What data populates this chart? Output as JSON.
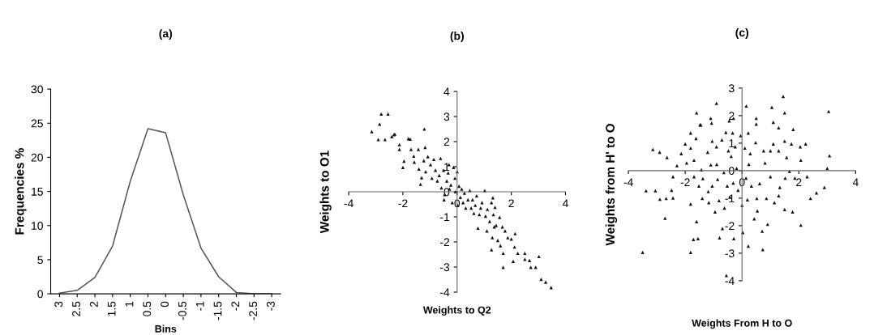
{
  "chart_data": [
    {
      "type": "line",
      "title": "(a)",
      "xlabel": "Bins",
      "ylabel": "Frequencies %",
      "categories": [
        "3",
        "2.5",
        "2",
        "1.5",
        "1",
        "0.5",
        "0",
        "-0.5",
        "-1",
        "-1.5",
        "-2",
        "-2.5",
        "-3"
      ],
      "values": [
        0.1,
        0.5,
        2.4,
        7,
        16.5,
        24.2,
        23.6,
        14.5,
        6.7,
        2.5,
        0.2,
        0,
        0
      ],
      "color": "#555555",
      "ylim": [
        0,
        30
      ],
      "yticks": [
        0,
        5,
        10,
        15,
        20,
        25,
        30
      ]
    },
    {
      "type": "scatter",
      "title": "(b)",
      "xlabel": "Weights to Q2",
      "ylabel": "Weights to O1",
      "color": "#111111",
      "marker": "triangle",
      "x": [
        -3.15,
        -2.86,
        -2.8,
        -2.55,
        -2.91,
        -2.66,
        -2.41,
        -2.33,
        -2.3,
        -2.13,
        -2.13,
        -2.0,
        -1.96,
        -1.8,
        -1.73,
        -1.7,
        -1.58,
        -1.6,
        -1.43,
        -1.41,
        -1.35,
        -1.31,
        -1.23,
        -1.21,
        -1.18,
        -1.16,
        -1.08,
        -0.98,
        -0.93,
        -0.86,
        -0.8,
        -0.73,
        -0.66,
        -0.61,
        -0.58,
        -0.5,
        -0.48,
        -0.46,
        -0.38,
        -0.33,
        -0.3,
        -0.28,
        -0.23,
        -0.18,
        -0.13,
        -0.08,
        -0.06,
        0,
        0.02,
        0.07,
        0.12,
        0.17,
        0.22,
        0.27,
        0.32,
        0.4,
        0.47,
        0.52,
        0.57,
        0.62,
        0.67,
        0.72,
        0.77,
        0.82,
        0.87,
        0.92,
        1.02,
        1.05,
        1.1,
        1.12,
        1.2,
        1.27,
        1.32,
        1.34,
        1.37,
        1.27,
        1.3,
        1.4,
        1.44,
        1.5,
        1.57,
        1.6,
        1.67,
        1.7,
        1.7,
        1.77,
        1.87,
        2.0,
        2.07,
        2.12,
        2.14,
        2.24,
        2.5,
        2.5,
        2.67,
        2.72,
        2.9,
        3.02,
        3.1,
        3.27,
        3.47
      ],
      "values": [
        2.4,
        2.7,
        3.1,
        3.1,
        2.08,
        2.08,
        2.2,
        2.28,
        2.3,
        1.88,
        1.69,
        0.97,
        1.22,
        2.12,
        2.1,
        1.69,
        1.18,
        1.42,
        1.69,
        0.91,
        0.3,
        0.56,
        1.24,
        2.5,
        1.77,
        0.8,
        1.4,
        1.08,
        0.54,
        1.29,
        0.86,
        0.43,
        0.65,
        1.33,
        0.16,
        0.86,
        -0.32,
        -0.11,
        0.43,
        0.75,
        1.08,
        0.11,
        0.27,
        -0.43,
        0.97,
        0.54,
        0,
        0.8,
        -0.54,
        0.22,
        -0.22,
        0.11,
        -0.43,
        -0.05,
        -0.65,
        -0.32,
        0.05,
        -0.65,
        -0.32,
        -0.86,
        -0.54,
        -0.16,
        -1.45,
        -0.91,
        -0.65,
        -0.43,
        0.05,
        -0.97,
        -1.56,
        -0.7,
        -1.18,
        -0.43,
        -0.24,
        -0.91,
        -1.4,
        -2.31,
        -1.83,
        -0.62,
        -1.34,
        -1.94,
        -1.02,
        -2.15,
        -1.4,
        -2.45,
        -3.01,
        -1.56,
        -1.83,
        -1.88,
        -2.77,
        -2.2,
        -1.67,
        -2.45,
        -2.45,
        -2.69,
        -2.74,
        -3.01,
        -3.01,
        -2.58,
        -3.49,
        -3.6,
        -3.82
      ],
      "xlim": [
        -4,
        4
      ],
      "ylim": [
        -4,
        4
      ],
      "xticks": [
        -4,
        -2,
        0,
        2,
        4
      ],
      "yticks": [
        -4,
        -3,
        -2,
        -1,
        0,
        1,
        2,
        3,
        4
      ]
    },
    {
      "type": "scatter",
      "title": "(c)",
      "xlabel": "Weights From H to O",
      "ylabel": "Weights from H' to O",
      "color": "#111111",
      "marker": "triangle",
      "x": [
        -3.14,
        -2.9,
        -2.64,
        -3.38,
        -3.05,
        -3.5,
        -2.89,
        -2.67,
        -2.43,
        -2.71,
        -2.48,
        -2.43,
        -2.29,
        -2.14,
        -2.0,
        -1.95,
        -1.81,
        -1.81,
        -1.81,
        -1.81,
        -1.71,
        -1.69,
        -1.69,
        -1.62,
        -1.6,
        -1.55,
        -1.52,
        -1.48,
        -1.43,
        -1.4,
        -1.38,
        -1.21,
        -1.19,
        -1.17,
        -1.1,
        -1.05,
        -1.05,
        -0.95,
        -0.9,
        -0.89,
        -0.86,
        -0.81,
        -0.79,
        -0.71,
        -0.69,
        -0.64,
        -0.62,
        -0.57,
        -0.55,
        -0.52,
        -0.48,
        -0.43,
        -0.38,
        -0.33,
        -0.31,
        -0.29,
        -0.24,
        -0.19,
        -0.14,
        -0.05,
        0,
        0.03,
        0.1,
        0.14,
        0.19,
        0.22,
        0.22,
        0.24,
        0.29,
        0.33,
        0.43,
        0.48,
        0.52,
        0.54,
        0.62,
        0.71,
        0.73,
        0.76,
        0.81,
        0.86,
        0.9,
        1.0,
        1.0,
        1.1,
        1.14,
        1.29,
        1.29,
        1.33,
        1.5,
        1.5,
        1.52,
        1.57,
        1.67,
        1.74,
        1.78,
        1.86,
        2.05,
        2.07,
        2.07,
        2.24,
        2.29,
        2.41,
        2.62,
        2.9,
        3.0,
        3.08,
        -1.45,
        -1.07,
        -0.45,
        0.5,
        1.1,
        1.29,
        -0.9,
        1.05,
        1.45,
        0.15,
        -1.6,
        -1.1,
        1.5,
        0.5,
        -0.3,
        1.8,
        3.05
      ],
      "values": [
        0.77,
        0.67,
        0.48,
        -0.73,
        -0.73,
        -2.97,
        -1.04,
        -1.01,
        -0.99,
        -1.73,
        -0.71,
        -0.22,
        0.18,
        0.62,
        0.97,
        0.28,
        1.37,
        0.82,
        -1.21,
        -2.97,
        -2.5,
        0.38,
        -0.22,
        1.17,
        -1.85,
        -2.47,
        -0.56,
        1.66,
        0.03,
        -1.01,
        -0.29,
        0.67,
        -0.76,
        -1.16,
        0.21,
        1.07,
        -0.56,
        -1.5,
        0.87,
        0.23,
        -0.32,
        -1.09,
        -2.44,
        1.12,
        -2.1,
        -0.07,
        -1.36,
        1.39,
        -3.81,
        -0.56,
        0.72,
        -0.96,
        0.52,
        1.37,
        -0.45,
        -2.47,
        0.87,
        0.08,
        -0.71,
        1.27,
        -1.26,
        -2.25,
        0.82,
        -0.27,
        -1.06,
        1.37,
        -2.74,
        0.23,
        0.62,
        -0.56,
        -1.75,
        1.02,
        -1.01,
        -1.46,
        -0.47,
        -2.2,
        -2.87,
        0.72,
        0.28,
        -1.01,
        -1.95,
        -0.22,
        0.72,
        0.97,
        -1.16,
        0.72,
        -0.91,
        -0.61,
        1.07,
        -1.41,
        -0.27,
        0.48,
        -0.02,
        0.97,
        -1.5,
        -0.27,
        0.87,
        0.38,
        -1.98,
        0.97,
        -0.22,
        -1.01,
        -0.81,
        -0.61,
        0.08,
        0.54,
        1.66,
        1.73,
        1.81,
        1.69,
        1.76,
        1.56,
        2.45,
        2.3,
        2.7,
        2.35,
        2.1,
        1.9,
        2.1,
        1.9,
        1.9,
        1.5,
        2.15
      ],
      "xlim": [
        -4,
        4
      ],
      "ylim": [
        -4,
        3
      ],
      "xticks": [
        -4,
        -2,
        0,
        2,
        4
      ],
      "yticks": [
        -4,
        -3,
        -2,
        -1,
        0,
        1,
        2,
        3
      ]
    }
  ]
}
